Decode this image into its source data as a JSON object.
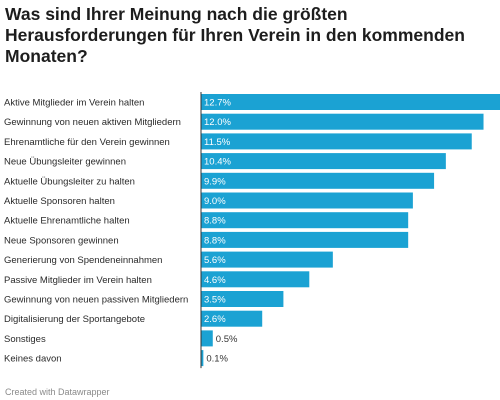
{
  "title": "Was sind Ihrer Meinung nach die größten Herausforderungen für Ihren Verein in den kommenden Monaten?",
  "footer": "Created with Datawrapper",
  "colors": {
    "bar": "#1ba2d3",
    "axis": "#333333",
    "label_inside": "#ffffff",
    "label_outside": "#333333"
  },
  "chart_data": {
    "type": "bar",
    "orientation": "horizontal",
    "title": "Was sind Ihrer Meinung nach die größten Herausforderungen für Ihren Verein in den kommenden Monaten?",
    "xlabel": "",
    "ylabel": "",
    "unit": "%",
    "grid": false,
    "legend": "none",
    "categories": [
      "Aktive Mitglieder im Verein halten",
      "Gewinnung von neuen aktiven Mitgliedern",
      "Ehrenamtliche für den Verein gewinnen",
      "Neue Übungsleiter gewinnen",
      "Aktuelle Übungsleiter zu halten",
      "Aktuelle Sponsoren halten",
      "Aktuelle Ehrenamtliche halten",
      "Neue Sponsoren gewinnen",
      "Generierung von Spendeneinnahmen",
      "Passive Mitglieder im Verein halten",
      "Gewinnung von neuen passiven Mitgliedern",
      "Digitalisierung der Sportangebote",
      "Sonstiges",
      "Keines davon"
    ],
    "values": [
      12.7,
      12.0,
      11.5,
      10.4,
      9.9,
      9.0,
      8.8,
      8.8,
      5.6,
      4.6,
      3.5,
      2.6,
      0.5,
      0.1
    ],
    "value_labels": [
      "12.7%",
      "12.0%",
      "11.5%",
      "10.4%",
      "9.9%",
      "9.0%",
      "8.8%",
      "8.8%",
      "5.6%",
      "4.6%",
      "3.5%",
      "2.6%",
      "0.5%",
      "0.1%"
    ],
    "xlim": [
      0,
      12.7
    ]
  }
}
